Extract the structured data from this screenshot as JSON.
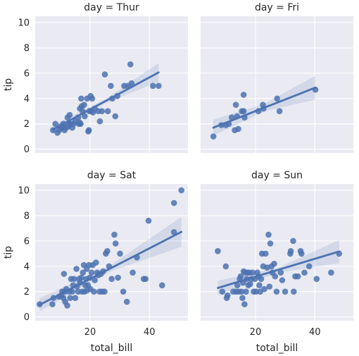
{
  "style": {
    "panel_bg": "#eaeaf2",
    "grid_color": "#ffffff",
    "point_color": "#4c72b0",
    "line_color": "#4c72b0",
    "ci_color": "#4c72b0"
  },
  "chart_data": {
    "type": "scatter",
    "layout": "facet-grid-2x2",
    "grid": true,
    "xlabel": "total_bill",
    "ylabel": "tip",
    "xlim": [
      1.5,
      53
    ],
    "ylim": [
      -0.3,
      10.5
    ],
    "xticks": [
      20,
      40
    ],
    "yticks": [
      0,
      2,
      4,
      6,
      8,
      10
    ],
    "facets": [
      {
        "title": "day = Thur",
        "points": [
          [
            7.5,
            1.5
          ],
          [
            8.3,
            2.0
          ],
          [
            9.0,
            1.3
          ],
          [
            9.6,
            1.5
          ],
          [
            10.1,
            1.8
          ],
          [
            10.3,
            1.7
          ],
          [
            10.8,
            1.7
          ],
          [
            11.0,
            2.0
          ],
          [
            11.4,
            1.5
          ],
          [
            12.0,
            1.7
          ],
          [
            12.4,
            2.5
          ],
          [
            12.7,
            1.8
          ],
          [
            13.0,
            2.0
          ],
          [
            13.1,
            2.7
          ],
          [
            13.4,
            2.0
          ],
          [
            14.0,
            1.7
          ],
          [
            14.5,
            2.0
          ],
          [
            15.0,
            2.2
          ],
          [
            16.0,
            2.5
          ],
          [
            16.2,
            2.0
          ],
          [
            16.5,
            2.1
          ],
          [
            16.6,
            3.2
          ],
          [
            16.8,
            2.0
          ],
          [
            17.0,
            4.0
          ],
          [
            17.2,
            3.4
          ],
          [
            17.5,
            3.0
          ],
          [
            18.0,
            3.5
          ],
          [
            18.2,
            2.6
          ],
          [
            19.0,
            4.0
          ],
          [
            19.4,
            1.4
          ],
          [
            19.6,
            1.5
          ],
          [
            19.8,
            3.0
          ],
          [
            20.2,
            4.2
          ],
          [
            20.4,
            3.0
          ],
          [
            20.7,
            4.0
          ],
          [
            21.0,
            2.9
          ],
          [
            21.6,
            3.2
          ],
          [
            22.8,
            3.0
          ],
          [
            23.3,
            2.2
          ],
          [
            24.0,
            3.0
          ],
          [
            25.0,
            5.9
          ],
          [
            26.0,
            3.0
          ],
          [
            27.0,
            5.0
          ],
          [
            27.5,
            4.0
          ],
          [
            28.5,
            2.6
          ],
          [
            29.2,
            4.2
          ],
          [
            31.5,
            5.0
          ],
          [
            32.7,
            5.0
          ],
          [
            33.6,
            6.7
          ],
          [
            34.0,
            5.2
          ],
          [
            41.2,
            5.0
          ],
          [
            43.1,
            5.0
          ]
        ],
        "fit": {
          "x": [
            7.5,
            43.1
          ],
          "y": [
            1.56,
            6.06
          ]
        },
        "ci": {
          "x": [
            7.5,
            25.3,
            43.1
          ],
          "lower": [
            1.23,
            3.63,
            5.32
          ],
          "upper": [
            1.88,
            3.97,
            6.8
          ]
        }
      },
      {
        "title": "day = Fri",
        "points": [
          [
            5.8,
            1.0
          ],
          [
            8.5,
            1.9
          ],
          [
            10.0,
            1.9
          ],
          [
            11.0,
            2.0
          ],
          [
            12.0,
            2.5
          ],
          [
            13.0,
            1.5
          ],
          [
            13.4,
            3.5
          ],
          [
            13.8,
            2.6
          ],
          [
            14.2,
            1.6
          ],
          [
            15.4,
            3.0
          ],
          [
            16.0,
            4.3
          ],
          [
            16.3,
            2.5
          ],
          [
            16.0,
            3.0
          ],
          [
            21.0,
            3.0
          ],
          [
            22.5,
            3.5
          ],
          [
            22.7,
            3.2
          ],
          [
            27.3,
            4.0
          ],
          [
            28.1,
            3.0
          ],
          [
            40.2,
            4.7
          ]
        ],
        "fit": {
          "x": [
            5.8,
            40.2
          ],
          "y": [
            1.7,
            4.86
          ]
        },
        "ci": {
          "x": [
            5.8,
            23.0,
            40.2
          ],
          "lower": [
            1.07,
            2.98,
            3.92
          ],
          "upper": [
            2.33,
            3.59,
            5.8
          ]
        }
      },
      {
        "title": "day = Sat",
        "points": [
          [
            3.0,
            1.0
          ],
          [
            7.3,
            1.0
          ],
          [
            7.7,
            1.5
          ],
          [
            9.5,
            1.6
          ],
          [
            10.3,
            1.7
          ],
          [
            10.6,
            2.0
          ],
          [
            11.0,
            1.5
          ],
          [
            11.2,
            3.4
          ],
          [
            11.5,
            2.0
          ],
          [
            11.6,
            1.2
          ],
          [
            12.0,
            2.2
          ],
          [
            12.3,
            0.9
          ],
          [
            13.0,
            2.0
          ],
          [
            13.3,
            1.5
          ],
          [
            13.6,
            3.0
          ],
          [
            14.0,
            2.0
          ],
          [
            14.3,
            2.5
          ],
          [
            14.6,
            3.0
          ],
          [
            15.0,
            1.5
          ],
          [
            15.4,
            3.8
          ],
          [
            15.6,
            2.4
          ],
          [
            16.0,
            2.0
          ],
          [
            16.3,
            3.0
          ],
          [
            16.6,
            2.7
          ],
          [
            17.0,
            3.1
          ],
          [
            17.3,
            2.0
          ],
          [
            17.6,
            3.5
          ],
          [
            17.9,
            4.1
          ],
          [
            18.1,
            2.0
          ],
          [
            18.4,
            2.5
          ],
          [
            18.7,
            3.0
          ],
          [
            18.9,
            3.8
          ],
          [
            19.0,
            2.1
          ],
          [
            19.3,
            2.5
          ],
          [
            19.6,
            4.1
          ],
          [
            19.9,
            3.1
          ],
          [
            20.1,
            2.2
          ],
          [
            20.5,
            3.5
          ],
          [
            20.9,
            4.1
          ],
          [
            21.3,
            2.0
          ],
          [
            21.6,
            2.9
          ],
          [
            22.0,
            4.3
          ],
          [
            22.4,
            3.5
          ],
          [
            22.8,
            3.3
          ],
          [
            23.2,
            2.0
          ],
          [
            23.7,
            3.4
          ],
          [
            24.1,
            2.0
          ],
          [
            24.4,
            3.6
          ],
          [
            24.9,
            2.0
          ],
          [
            25.3,
            5.0
          ],
          [
            25.8,
            5.2
          ],
          [
            26.4,
            4.0
          ],
          [
            27.3,
            3.0
          ],
          [
            28.2,
            6.5
          ],
          [
            28.6,
            5.8
          ],
          [
            29.4,
            3.1
          ],
          [
            30.1,
            5.0
          ],
          [
            31.2,
            2.0
          ],
          [
            32.4,
            1.2
          ],
          [
            34.4,
            3.5
          ],
          [
            35.8,
            4.7
          ],
          [
            38.1,
            3.0
          ],
          [
            38.7,
            3.0
          ],
          [
            39.7,
            7.6
          ],
          [
            44.3,
            2.5
          ],
          [
            48.3,
            9.0
          ],
          [
            48.3,
            6.7
          ],
          [
            50.8,
            10.0
          ]
        ],
        "fit": {
          "x": [
            3.0,
            50.8
          ],
          "y": [
            0.96,
            6.72
          ]
        },
        "ci": {
          "x": [
            3.0,
            26.9,
            50.8
          ],
          "lower": [
            0.45,
            3.59,
            5.54
          ],
          "upper": [
            1.47,
            4.09,
            7.9
          ]
        }
      },
      {
        "title": "day = Sun",
        "points": [
          [
            7.3,
            5.2
          ],
          [
            8.8,
            2.0
          ],
          [
            10.0,
            4.0
          ],
          [
            10.3,
            1.5
          ],
          [
            10.6,
            1.7
          ],
          [
            12.5,
            2.0
          ],
          [
            13.4,
            2.0
          ],
          [
            13.9,
            2.5
          ],
          [
            14.3,
            2.0
          ],
          [
            14.7,
            3.0
          ],
          [
            15.0,
            3.2
          ],
          [
            15.3,
            2.0
          ],
          [
            15.6,
            1.5
          ],
          [
            15.8,
            2.7
          ],
          [
            16.0,
            3.6
          ],
          [
            16.3,
            1.0
          ],
          [
            16.5,
            3.5
          ],
          [
            16.8,
            2.0
          ],
          [
            17.0,
            3.0
          ],
          [
            17.3,
            3.5
          ],
          [
            17.6,
            2.5
          ],
          [
            17.9,
            3.5
          ],
          [
            18.2,
            2.6
          ],
          [
            18.6,
            3.0
          ],
          [
            19.0,
            3.5
          ],
          [
            19.4,
            2.0
          ],
          [
            19.8,
            3.0
          ],
          [
            20.2,
            2.0
          ],
          [
            20.6,
            3.5
          ],
          [
            21.0,
            3.2
          ],
          [
            21.3,
            2.5
          ],
          [
            21.6,
            2.0
          ],
          [
            21.9,
            3.0
          ],
          [
            22.2,
            5.0
          ],
          [
            22.6,
            4.0
          ],
          [
            23.0,
            2.2
          ],
          [
            23.4,
            5.0
          ],
          [
            23.9,
            3.9
          ],
          [
            24.4,
            6.5
          ],
          [
            24.7,
            2.4
          ],
          [
            25.0,
            5.8
          ],
          [
            25.4,
            4.0
          ],
          [
            25.7,
            3.5
          ],
          [
            26.3,
            4.2
          ],
          [
            26.6,
            3.2
          ],
          [
            27.1,
            2.0
          ],
          [
            28.5,
            3.5
          ],
          [
            29.0,
            2.9
          ],
          [
            30.0,
            2.0
          ],
          [
            31.7,
            5.0
          ],
          [
            31.9,
            5.2
          ],
          [
            32.7,
            6.0
          ],
          [
            32.9,
            2.0
          ],
          [
            33.4,
            3.2
          ],
          [
            34.3,
            3.2
          ],
          [
            35.2,
            5.2
          ],
          [
            35.5,
            5.0
          ],
          [
            36.5,
            3.5
          ],
          [
            38.1,
            4.0
          ],
          [
            40.6,
            3.0
          ],
          [
            45.5,
            3.5
          ],
          [
            48.2,
            5.0
          ]
        ],
        "fit": {
          "x": [
            7.3,
            48.2
          ],
          "y": [
            2.29,
            5.17
          ]
        },
        "ci": {
          "x": [
            7.3,
            27.7,
            48.2
          ],
          "lower": [
            1.73,
            3.5,
            4.26
          ],
          "upper": [
            2.85,
            3.9,
            6.08
          ]
        }
      }
    ]
  }
}
